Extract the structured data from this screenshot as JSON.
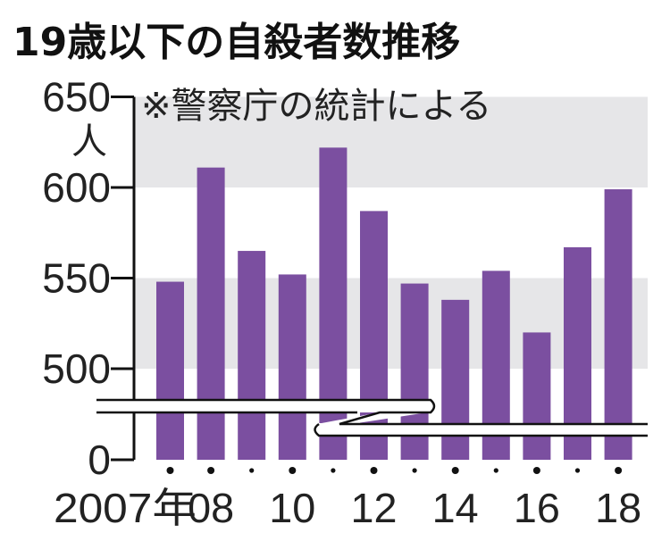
{
  "chart_data": {
    "type": "bar",
    "title": "19歳以下の自殺者数推移",
    "subtitle": "※警察庁の統計による",
    "ylabel": "人",
    "x": [
      2007,
      2008,
      2009,
      2010,
      2011,
      2012,
      2013,
      2014,
      2015,
      2016,
      2017,
      2018
    ],
    "values": [
      548,
      611,
      565,
      552,
      622,
      587,
      547,
      538,
      554,
      520,
      567,
      599
    ],
    "y_ticks": [
      "0",
      "500",
      "550",
      "600",
      "650"
    ],
    "x_tick_labels": [
      {
        "index": 0,
        "label": "2007年"
      },
      {
        "index": 1,
        "label": "08"
      },
      {
        "index": 3,
        "label": "10"
      },
      {
        "index": 5,
        "label": "12"
      },
      {
        "index": 7,
        "label": "14"
      },
      {
        "index": 9,
        "label": "16"
      },
      {
        "index": 11,
        "label": "18"
      }
    ],
    "ylim": [
      500,
      650
    ],
    "axis_break": "between 0 and 500",
    "grid": "alternating gray bands",
    "bar_color": "#7b4fa0",
    "band_color": "#e6e6e8"
  }
}
